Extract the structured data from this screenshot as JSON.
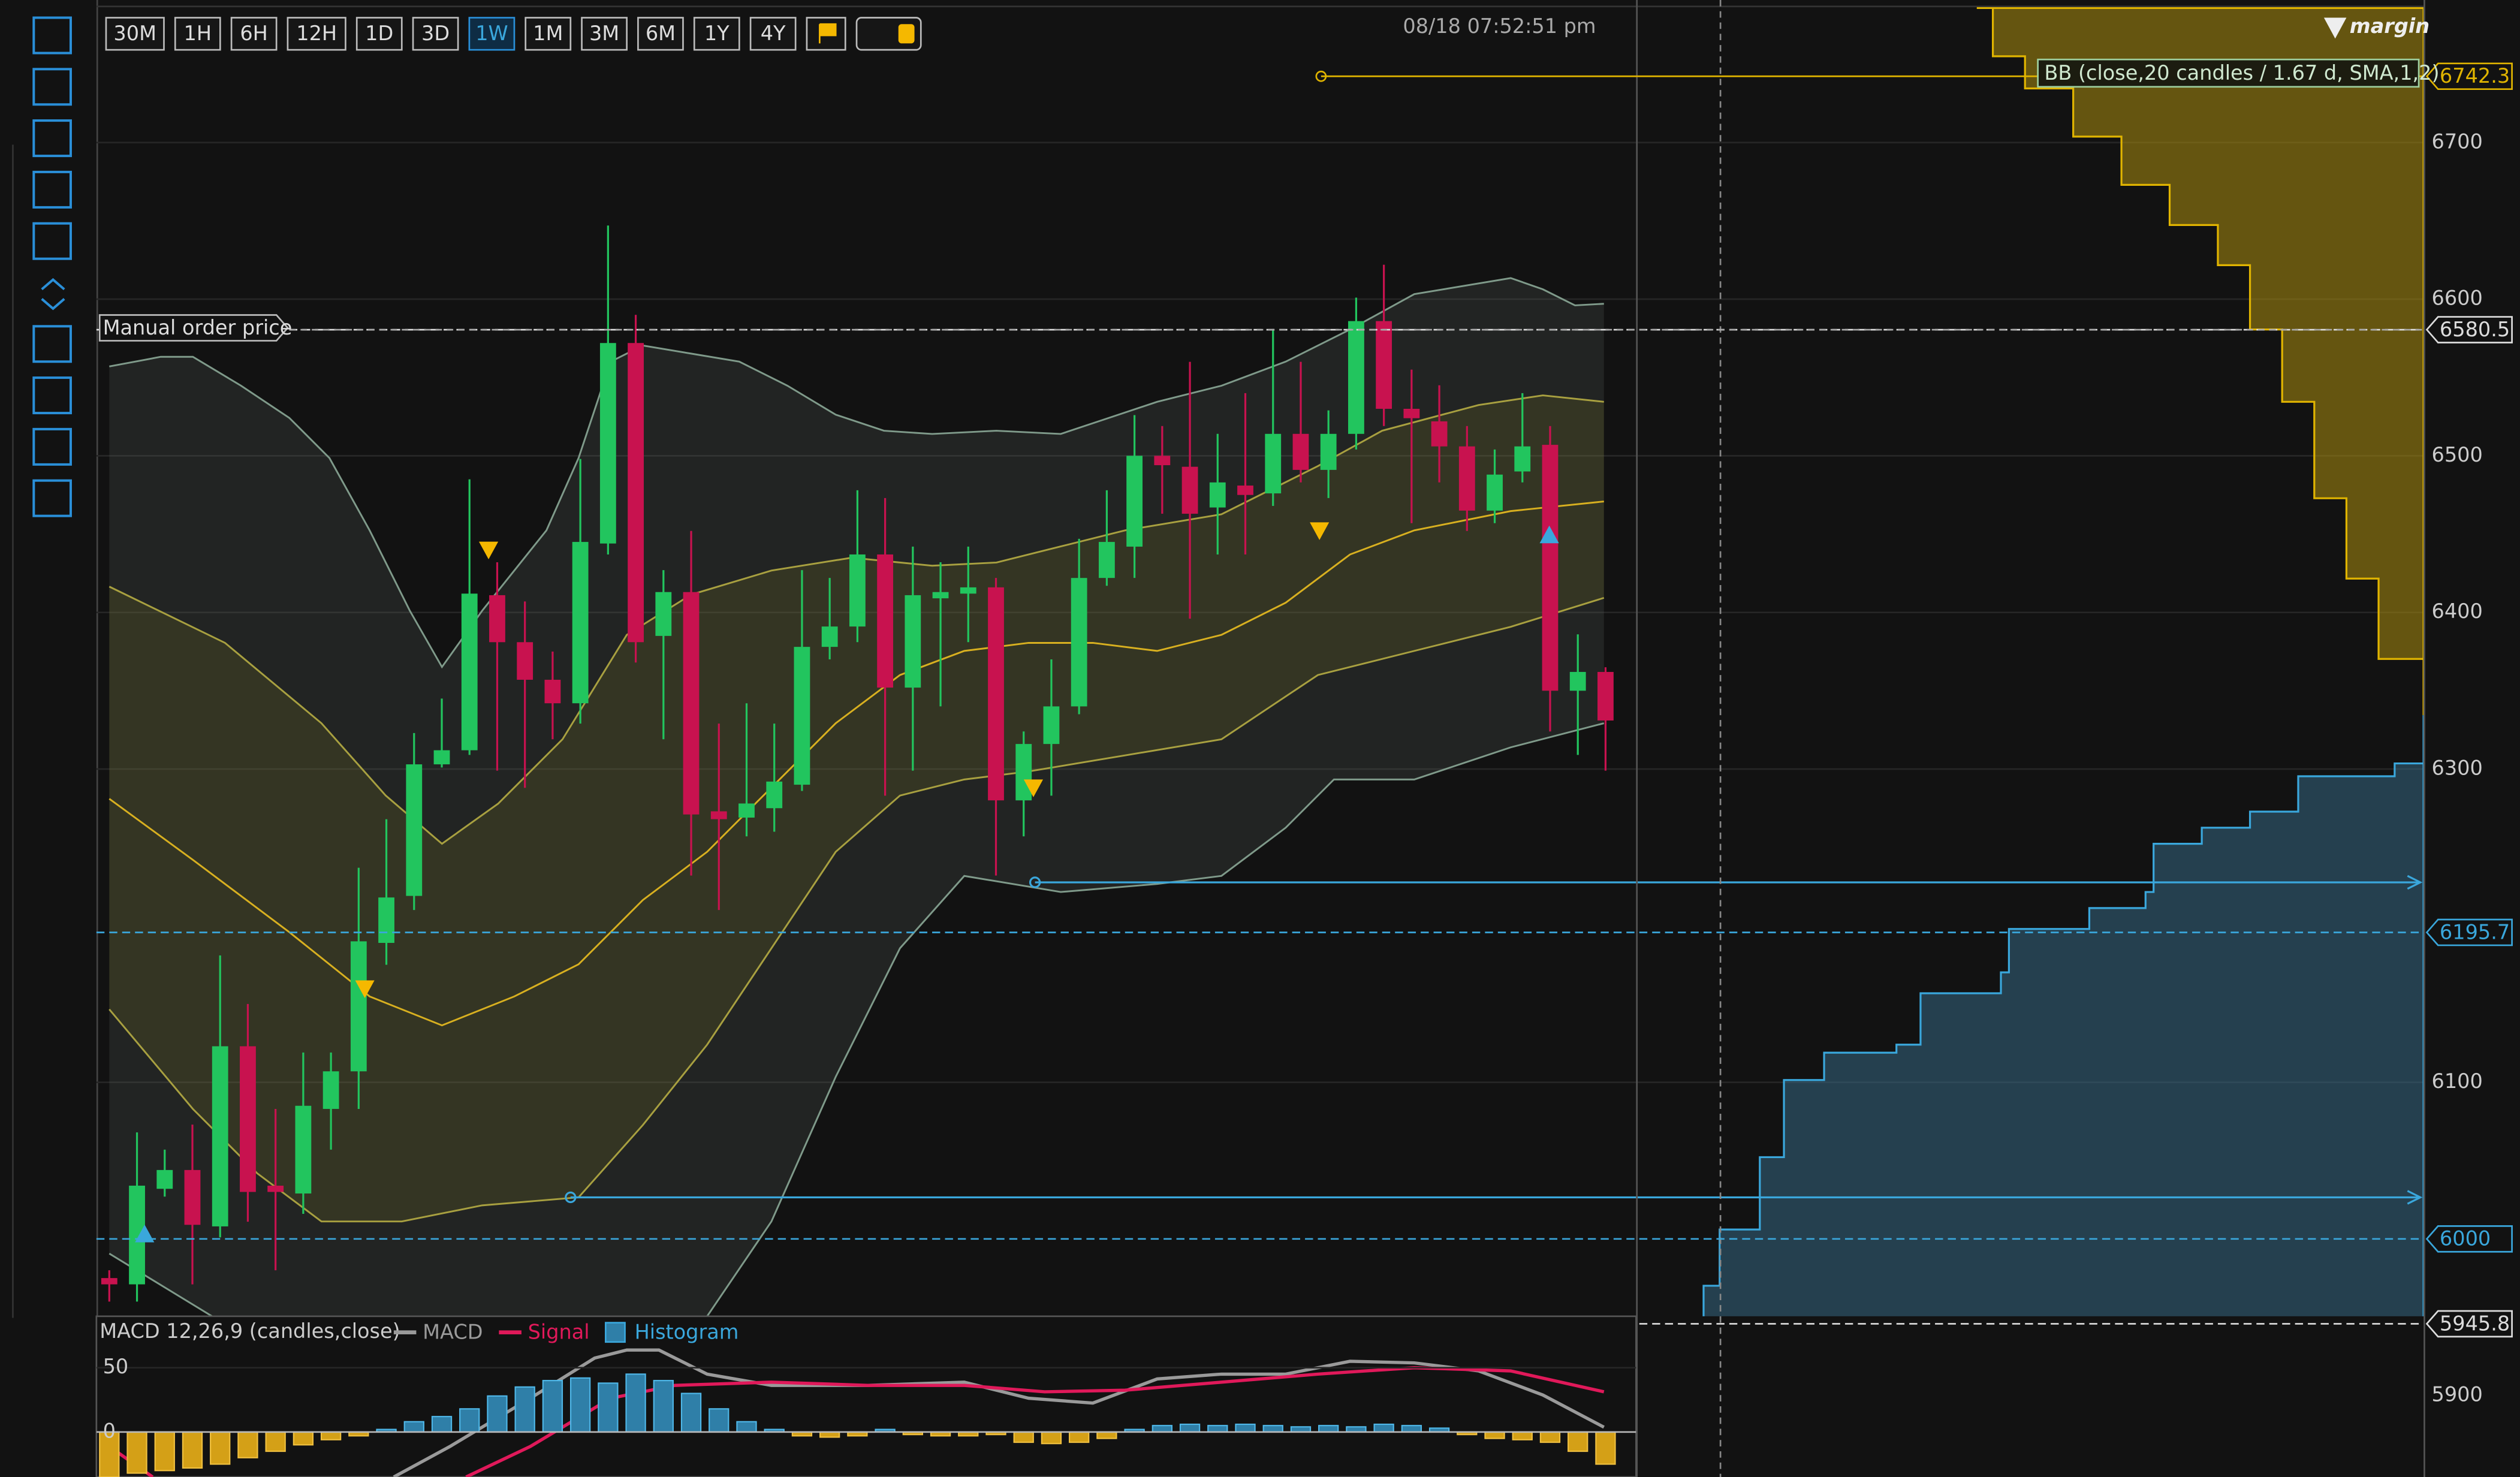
{
  "toolbar": {
    "timeframes": [
      "30M",
      "1H",
      "6H",
      "12H",
      "1D",
      "3D",
      "1W",
      "1M",
      "3M",
      "6M",
      "1Y",
      "4Y"
    ],
    "active": "1W"
  },
  "timestamp": "08/18 07:52:51 pm",
  "brand": "margin",
  "indicator_label": "BB (close,20 candles / 1.67 d, SMA,1,2)",
  "manual_order_label": "Manual order price",
  "price_axis": {
    "ylim": [
      5848,
      6791
    ],
    "ticks": [
      6700,
      6600,
      6500,
      6400,
      6300,
      6100,
      5900
    ]
  },
  "price_tags": [
    {
      "value": 6742.3,
      "color": "#e0b400"
    },
    {
      "value": 6580.5,
      "color": "#dddddd"
    },
    {
      "value": 6195.7,
      "color": "#3aa7dc"
    },
    {
      "value": 6000,
      "color": "#3aa7dc"
    },
    {
      "value": 5945.8,
      "color": "#dddddd"
    }
  ],
  "candles": {
    "up_color": "#22c55e",
    "down_color": "#c8124f",
    "open": [
      5975,
      5971,
      6032,
      6044,
      6008,
      6123,
      6034,
      6029,
      6083,
      6107,
      6189,
      6219,
      6303,
      6312,
      6411,
      6381,
      6357,
      6342,
      6444,
      6572,
      6385,
      6413,
      6273,
      6269,
      6275,
      6290,
      6378,
      6391,
      6437,
      6352,
      6409,
      6412,
      6416,
      6280,
      6316,
      6340,
      6422,
      6442,
      6500,
      6493,
      6467,
      6481,
      6476,
      6514,
      6491,
      6514,
      6586,
      6530,
      6522,
      6506,
      6465,
      6490,
      6507,
      6350,
      6362
    ],
    "high": [
      5980,
      6068,
      6057,
      6073,
      6181,
      6150,
      6083,
      6119,
      6119,
      6237,
      6268,
      6323,
      6345,
      6485,
      6432,
      6407,
      6375,
      6498,
      6647,
      6590,
      6427,
      6452,
      6329,
      6342,
      6329,
      6427,
      6422,
      6478,
      6473,
      6442,
      6432,
      6442,
      6422,
      6324,
      6370,
      6447,
      6478,
      6526,
      6519,
      6560,
      6514,
      6540,
      6581,
      6560,
      6529,
      6601,
      6622,
      6555,
      6545,
      6519,
      6504,
      6540,
      6519,
      6386,
      6365
    ],
    "low": [
      5960,
      5960,
      6027,
      5971,
      6001,
      6011,
      5980,
      6016,
      6057,
      6083,
      6175,
      6210,
      6301,
      6309,
      6299,
      6288,
      6319,
      6329,
      6437,
      6368,
      6319,
      6232,
      6210,
      6257,
      6260,
      6286,
      6370,
      6381,
      6283,
      6299,
      6340,
      6381,
      6232,
      6257,
      6283,
      6335,
      6417,
      6422,
      6463,
      6396,
      6437,
      6437,
      6468,
      6483,
      6473,
      6504,
      6519,
      6457,
      6483,
      6452,
      6457,
      6483,
      6324,
      6309,
      6299
    ],
    "close": [
      5971,
      6034,
      6044,
      6009,
      6123,
      6030,
      6030,
      6085,
      6107,
      6190,
      6218,
      6303,
      6312,
      6412,
      6381,
      6357,
      6342,
      6445,
      6572,
      6381,
      6413,
      6271,
      6268,
      6278,
      6292,
      6378,
      6391,
      6437,
      6352,
      6411,
      6413,
      6416,
      6280,
      6316,
      6340,
      6422,
      6445,
      6500,
      6494,
      6463,
      6483,
      6475,
      6514,
      6491,
      6514,
      6586,
      6530,
      6524,
      6506,
      6465,
      6488,
      6506,
      6350,
      6362,
      6331
    ]
  },
  "macd": {
    "title": "MACD 12,26,9 (candles,close)",
    "legend": [
      {
        "name": "MACD",
        "color": "#9a9a9a"
      },
      {
        "name": "Signal",
        "color": "#e0195a"
      },
      {
        "name": "Histogram",
        "color": "#3aa7dc"
      }
    ],
    "ylim": [
      -35,
      90
    ],
    "ticks": [
      50,
      0
    ],
    "pos_color": "#2f7fa8",
    "neg_color": "#d4a017",
    "histogram": [
      -35,
      -32,
      -30,
      -28,
      -25,
      -20,
      -15,
      -10,
      -6,
      -3,
      2,
      8,
      12,
      18,
      28,
      35,
      40,
      42,
      38,
      45,
      40,
      30,
      18,
      8,
      2,
      -3,
      -4,
      -3,
      2,
      -2,
      -3,
      -3,
      -2,
      -8,
      -9,
      -8,
      -5,
      2,
      5,
      6,
      5,
      6,
      5,
      4,
      5,
      4,
      6,
      5,
      3,
      -2,
      -5,
      -6,
      -8,
      -15,
      -25
    ]
  }
}
